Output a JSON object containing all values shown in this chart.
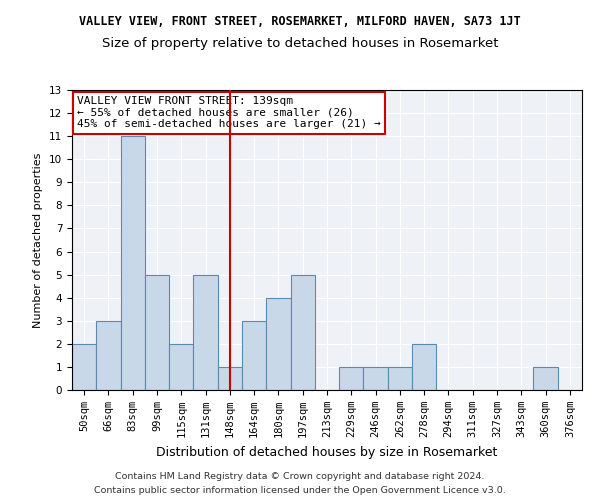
{
  "title_line1": "VALLEY VIEW, FRONT STREET, ROSEMARKET, MILFORD HAVEN, SA73 1JT",
  "title_line2": "Size of property relative to detached houses in Rosemarket",
  "xlabel": "Distribution of detached houses by size in Rosemarket",
  "ylabel": "Number of detached properties",
  "categories": [
    "50sqm",
    "66sqm",
    "83sqm",
    "99sqm",
    "115sqm",
    "131sqm",
    "148sqm",
    "164sqm",
    "180sqm",
    "197sqm",
    "213sqm",
    "229sqm",
    "246sqm",
    "262sqm",
    "278sqm",
    "294sqm",
    "311sqm",
    "327sqm",
    "343sqm",
    "360sqm",
    "376sqm"
  ],
  "values": [
    2,
    3,
    11,
    5,
    2,
    5,
    1,
    3,
    4,
    5,
    0,
    1,
    1,
    1,
    2,
    0,
    0,
    0,
    0,
    1,
    0
  ],
  "bar_color": "#c8d8e8",
  "bar_edge_color": "#5a8ab0",
  "vline_x": 6,
  "vline_color": "#cc0000",
  "annotation_text": "VALLEY VIEW FRONT STREET: 139sqm\n← 55% of detached houses are smaller (26)\n45% of semi-detached houses are larger (21) →",
  "annotation_box_color": "white",
  "annotation_box_edge": "#cc0000",
  "ylim": [
    0,
    13
  ],
  "yticks": [
    0,
    1,
    2,
    3,
    4,
    5,
    6,
    7,
    8,
    9,
    10,
    11,
    12,
    13
  ],
  "footer_line1": "Contains HM Land Registry data © Crown copyright and database right 2024.",
  "footer_line2": "Contains public sector information licensed under the Open Government Licence v3.0.",
  "bg_color": "#eef2f7",
  "grid_color": "#ffffff",
  "title1_fontsize": 8.5,
  "title2_fontsize": 9.5,
  "xlabel_fontsize": 9,
  "ylabel_fontsize": 8,
  "tick_fontsize": 7.5,
  "footer_fontsize": 6.8,
  "annot_fontsize": 8
}
